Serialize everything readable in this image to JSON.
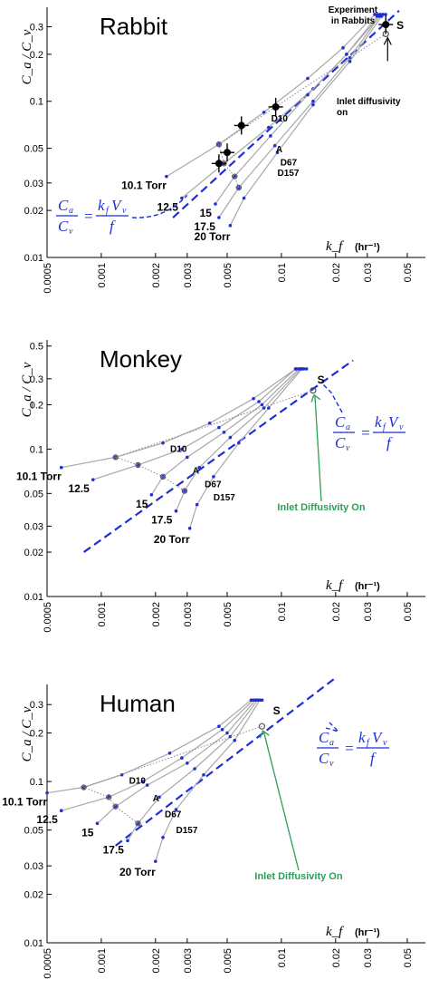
{
  "chart_data": [
    {
      "type": "line",
      "title": "Rabbit",
      "xlabel": "k_f",
      "xunit": "(hr⁻¹)",
      "ylabel": "C_a / C_v",
      "xscale": "log",
      "yscale": "log",
      "xlim": [
        0.0005,
        0.05
      ],
      "ylim": [
        0.01,
        0.5
      ],
      "x_ticks": [
        "0.0005",
        "0.001",
        "0.002",
        "0.003",
        "0.005",
        "0.01",
        "0.02",
        "0.03",
        "0.05"
      ],
      "x_tick_values": [
        0.0005,
        0.001,
        0.002,
        0.003,
        0.005,
        0.01,
        0.02,
        0.03,
        0.05
      ],
      "y_ticks": [
        "0.01",
        "0.02",
        "0.03",
        "0.05",
        "0.1",
        "0.2",
        "0.3"
      ],
      "y_tick_values": [
        0.01,
        0.02,
        0.03,
        0.05,
        0.1,
        0.2,
        0.3
      ],
      "series": [
        {
          "name": "10.1 Torr",
          "x": [
            0.0023,
            0.0045,
            0.008,
            0.014,
            0.022,
            0.033
          ],
          "y": [
            0.033,
            0.053,
            0.085,
            0.14,
            0.22,
            0.36
          ]
        },
        {
          "name": "12.5",
          "x": [
            0.0028,
            0.0048,
            0.0085,
            0.015,
            0.023,
            0.034
          ],
          "y": [
            0.024,
            0.04,
            0.068,
            0.12,
            0.2,
            0.35
          ]
        },
        {
          "name": "15",
          "x": [
            0.0043,
            0.0055,
            0.0087,
            0.014,
            0.023,
            0.035
          ],
          "y": [
            0.022,
            0.033,
            0.06,
            0.11,
            0.2,
            0.35
          ]
        },
        {
          "name": "17.5",
          "x": [
            0.0045,
            0.0058,
            0.0092,
            0.015,
            0.024,
            0.035
          ],
          "y": [
            0.018,
            0.028,
            0.052,
            0.1,
            0.19,
            0.35
          ]
        },
        {
          "name": "20 Torr",
          "x": [
            0.0052,
            0.0062,
            0.0095,
            0.015,
            0.024,
            0.036
          ],
          "y": [
            0.016,
            0.024,
            0.047,
            0.095,
            0.18,
            0.35
          ]
        }
      ],
      "model_line": {
        "x": [
          0.0025,
          0.045
        ],
        "y": [
          0.018,
          0.38
        ]
      },
      "experiment": {
        "x": [
          0.0045,
          0.005,
          0.006,
          0.0093,
          0.038
        ],
        "y": [
          0.04,
          0.047,
          0.07,
          0.092,
          0.31
        ]
      },
      "inlet_point": {
        "x": 0.038,
        "y": 0.27
      },
      "labels": [
        "D10",
        "A",
        "D67",
        "D157",
        "10.1 Torr",
        "12.5",
        "15",
        "17.5",
        "20 Torr",
        "S"
      ],
      "annotations": [
        "Experiment in Rabbits",
        "Inlet diffusivity on"
      ]
    },
    {
      "type": "line",
      "title": "Monkey",
      "xlabel": "k_f",
      "xunit": "(hr⁻¹)",
      "ylabel": "C_a / C_v",
      "xscale": "log",
      "yscale": "log",
      "xlim": [
        0.0005,
        0.05
      ],
      "ylim": [
        0.01,
        0.5
      ],
      "x_ticks": [
        "0.0005",
        "0.001",
        "0.002",
        "0.003",
        "0.005",
        "0.01",
        "0.02",
        "0.03",
        "0.05"
      ],
      "x_tick_values": [
        0.0005,
        0.001,
        0.002,
        0.003,
        0.005,
        0.01,
        0.02,
        0.03,
        0.05
      ],
      "y_ticks": [
        "0.01",
        "0.02",
        "0.03",
        "0.05",
        "0.1",
        "0.2",
        "0.3",
        "0.5"
      ],
      "y_tick_values": [
        0.01,
        0.02,
        0.03,
        0.05,
        0.1,
        0.2,
        0.3,
        0.5
      ],
      "series": [
        {
          "name": "10.1 Torr",
          "x": [
            0.0006,
            0.0012,
            0.0022,
            0.004,
            0.007,
            0.012
          ],
          "y": [
            0.075,
            0.088,
            0.11,
            0.15,
            0.22,
            0.35
          ]
        },
        {
          "name": "12.5",
          "x": [
            0.0009,
            0.0016,
            0.0028,
            0.0045,
            0.0075,
            0.012
          ],
          "y": [
            0.062,
            0.078,
            0.1,
            0.14,
            0.21,
            0.35
          ]
        },
        {
          "name": "15",
          "x": [
            0.0019,
            0.0022,
            0.003,
            0.0048,
            0.0078,
            0.0125
          ],
          "y": [
            0.049,
            0.065,
            0.088,
            0.13,
            0.2,
            0.35
          ]
        },
        {
          "name": "17.5",
          "x": [
            0.0026,
            0.0029,
            0.0035,
            0.0052,
            0.008,
            0.0128
          ],
          "y": [
            0.038,
            0.052,
            0.075,
            0.12,
            0.19,
            0.35
          ]
        },
        {
          "name": "20 Torr",
          "x": [
            0.0031,
            0.0034,
            0.0042,
            0.0058,
            0.0085,
            0.013
          ],
          "y": [
            0.029,
            0.042,
            0.065,
            0.11,
            0.19,
            0.35
          ]
        }
      ],
      "model_line": {
        "x": [
          0.0008,
          0.025
        ],
        "y": [
          0.02,
          0.4
        ]
      },
      "inlet_point": {
        "x": 0.015,
        "y": 0.25
      },
      "labels": [
        "D10",
        "A",
        "D67",
        "D157",
        "10.1 Torr",
        "12.5",
        "15",
        "17.5",
        "20 Torr",
        "S"
      ],
      "annotations": [
        "Inlet Diffusivity On"
      ]
    },
    {
      "type": "line",
      "title": "Human",
      "xlabel": "k_f",
      "xunit": "(hr⁻¹)",
      "ylabel": "C_a / C_v",
      "xscale": "log",
      "yscale": "log",
      "xlim": [
        0.0005,
        0.05
      ],
      "ylim": [
        0.01,
        0.5
      ],
      "x_ticks": [
        "0.0005",
        "0.001",
        "0.002",
        "0.003",
        "0.005",
        "0.01",
        "0.02",
        "0.03",
        "0.05"
      ],
      "x_tick_values": [
        0.0005,
        0.001,
        0.002,
        0.003,
        0.005,
        0.01,
        0.02,
        0.03,
        0.05
      ],
      "y_ticks": [
        "0.01",
        "0.02",
        "0.03",
        "0.05",
        "0.1",
        "0.2",
        "0.3"
      ],
      "y_tick_values": [
        0.01,
        0.02,
        0.03,
        0.05,
        0.1,
        0.2,
        0.3
      ],
      "series": [
        {
          "name": "10.1 Torr",
          "x": [
            0.0005,
            0.0008,
            0.0013,
            0.0024,
            0.0045,
            0.0068
          ],
          "y": [
            0.085,
            0.092,
            0.11,
            0.15,
            0.22,
            0.32
          ]
        },
        {
          "name": "12.5",
          "x": [
            0.0006,
            0.0011,
            0.0017,
            0.0028,
            0.0047,
            0.007
          ],
          "y": [
            0.066,
            0.08,
            0.1,
            0.14,
            0.21,
            0.32
          ]
        },
        {
          "name": "15",
          "x": [
            0.00095,
            0.0012,
            0.0018,
            0.003,
            0.005,
            0.0072
          ],
          "y": [
            0.055,
            0.07,
            0.095,
            0.13,
            0.2,
            0.32
          ]
        },
        {
          "name": "17.5",
          "x": [
            0.0014,
            0.0016,
            0.0021,
            0.0033,
            0.0052,
            0.0074
          ],
          "y": [
            0.043,
            0.055,
            0.08,
            0.12,
            0.19,
            0.32
          ]
        },
        {
          "name": "20 Torr",
          "x": [
            0.002,
            0.0022,
            0.0026,
            0.0037,
            0.0055,
            0.0076
          ],
          "y": [
            0.032,
            0.045,
            0.067,
            0.11,
            0.18,
            0.32
          ]
        }
      ],
      "model_line": {
        "x": [
          0.0012,
          0.02
        ],
        "y": [
          0.04,
          0.44
        ]
      },
      "inlet_point": {
        "x": 0.0078,
        "y": 0.22
      },
      "labels": [
        "D10",
        "A",
        "D67",
        "D157",
        "10.1 Torr",
        "12.5",
        "15",
        "17.5",
        "20 Torr",
        "S"
      ],
      "annotations": [
        "Inlet Diffusivity On"
      ]
    }
  ],
  "equation": {
    "lhs_num": "C",
    "lhs_num_sub": "a",
    "lhs_den": "C",
    "lhs_den_sub": "v",
    "rhs_num": "k",
    "rhs_num_sub1": "f",
    "rhs_num_v": "V",
    "rhs_num_sub2": "v",
    "rhs_den": "f",
    "eq": "="
  },
  "colors": {
    "accent": "#1f2fd6",
    "curve": "#a8a8a8",
    "green": "#2aa05a"
  }
}
